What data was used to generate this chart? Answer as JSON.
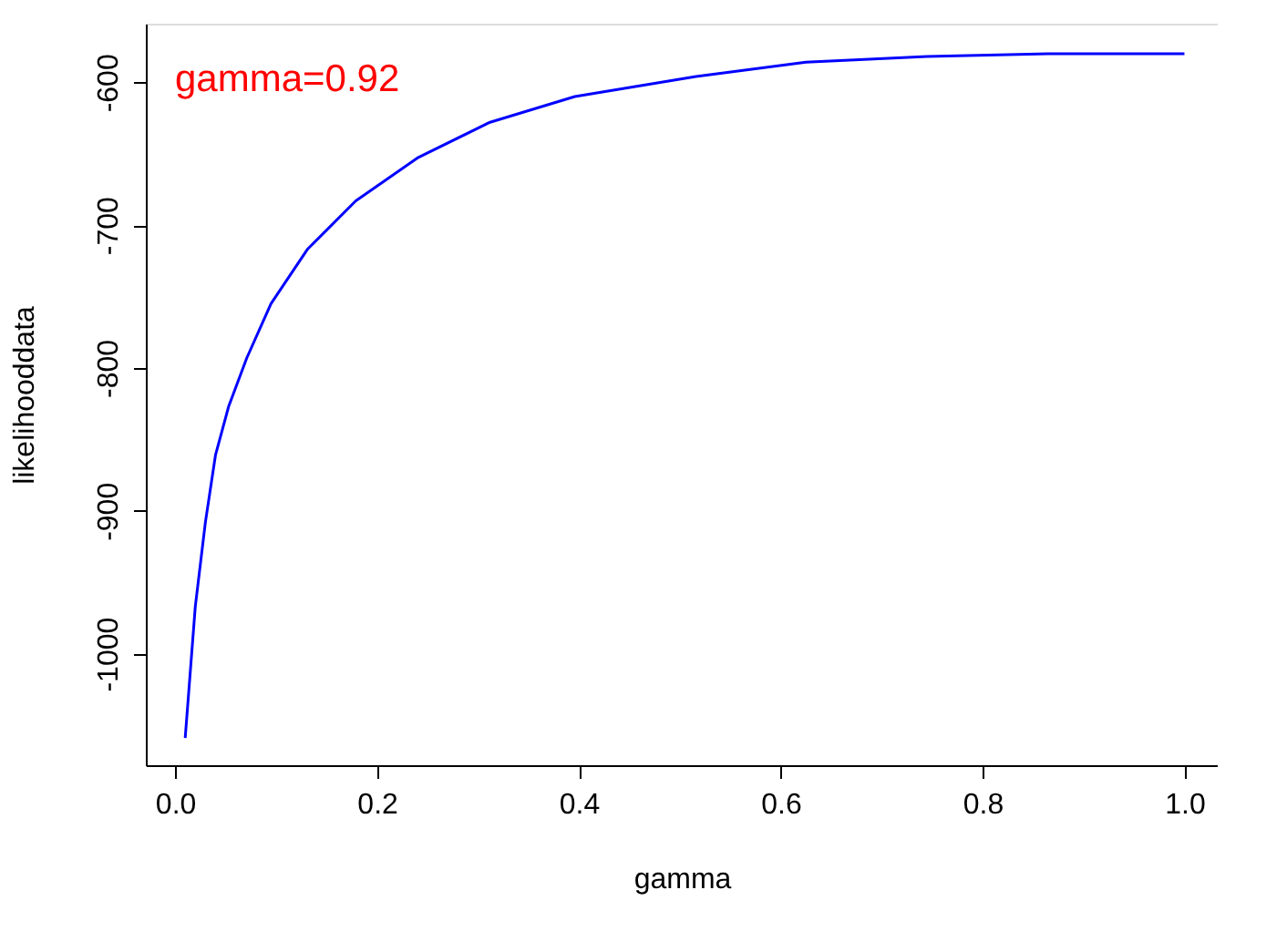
{
  "chart_data": {
    "type": "line",
    "xlabel": "gamma",
    "ylabel": "likelihooddata",
    "x": [
      0.01,
      0.02,
      0.03,
      0.04,
      0.053,
      0.071,
      0.095,
      0.131,
      0.179,
      0.24,
      0.312,
      0.396,
      0.516,
      0.625,
      0.745,
      0.865,
      1.0
    ],
    "series": [
      {
        "color": "#0000ff",
        "values": [
          -1059,
          -967,
          -908,
          -861,
          -827,
          -793,
          -755,
          -717,
          -683,
          -653,
          -628,
          -610,
          -596,
          -586,
          -582,
          -580,
          -580
        ]
      }
    ],
    "xlim": [
      -0.029,
      1.033
    ],
    "ylim": [
      -1078,
      -559
    ],
    "xticks": [
      {
        "value": 0,
        "label": "0.0"
      },
      0.2,
      0.4,
      0.6,
      0.8,
      {
        "value": 1,
        "label": "1.0"
      }
    ],
    "yticks": [
      -1000,
      -900,
      -800,
      -700,
      -600
    ],
    "annotations": [
      "gamma=0.92"
    ],
    "grid": false,
    "marker": "none",
    "line_style": "solid"
  }
}
